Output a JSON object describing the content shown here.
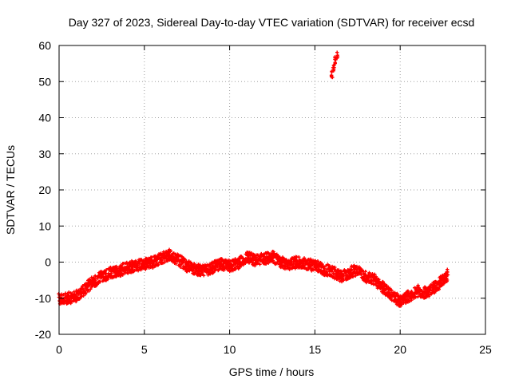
{
  "chart_data": {
    "type": "scatter",
    "title": "Day 327 of 2023, Sidereal Day-to-day VTEC variation (SDTVAR) for receiver ecsd",
    "xlabel": "GPS time / hours",
    "ylabel": "SDTVAR / TECUs",
    "xlim": [
      0,
      25
    ],
    "ylim": [
      -20,
      60
    ],
    "xticks": [
      0,
      5,
      10,
      15,
      20,
      25
    ],
    "yticks": [
      -20,
      -10,
      0,
      10,
      20,
      30,
      40,
      50,
      60
    ],
    "grid": true,
    "marker": "plus",
    "color": "#ff0000",
    "series": [
      {
        "name": "SDTVAR",
        "profile_x": [
          0,
          0.5,
          1.0,
          1.5,
          2.0,
          2.5,
          3.0,
          3.5,
          4.0,
          4.5,
          5.0,
          5.5,
          6.0,
          6.5,
          7.0,
          7.5,
          8.0,
          8.5,
          9.0,
          9.5,
          10.0,
          10.5,
          11.0,
          11.5,
          12.0,
          12.5,
          13.0,
          13.5,
          14.0,
          14.5,
          15.0,
          15.5,
          16.0,
          16.5,
          17.0,
          17.5,
          18.0,
          18.5,
          19.0,
          19.5,
          20.0,
          20.5,
          21.0,
          21.5,
          22.0,
          22.5,
          22.8
        ],
        "profile_y": [
          -10,
          -10,
          -9.5,
          -7.5,
          -5.5,
          -4,
          -3,
          -2.5,
          -1.5,
          -1,
          -0.5,
          0,
          1,
          2,
          0.5,
          -1,
          -2,
          -2.5,
          -1.5,
          -0.5,
          -1,
          -0.5,
          1.5,
          0.5,
          1,
          1.5,
          0,
          -0.5,
          0,
          -0.5,
          -1,
          -2,
          -2.5,
          -4,
          -3,
          -2,
          -4,
          -5,
          -7,
          -9,
          -11,
          -9.5,
          -8,
          -8.5,
          -7,
          -5,
          -3.5
        ],
        "outlier_x": [
          16.0,
          16.1,
          16.2,
          16.3
        ],
        "outlier_y": [
          52,
          54,
          56,
          57.5
        ]
      }
    ]
  }
}
